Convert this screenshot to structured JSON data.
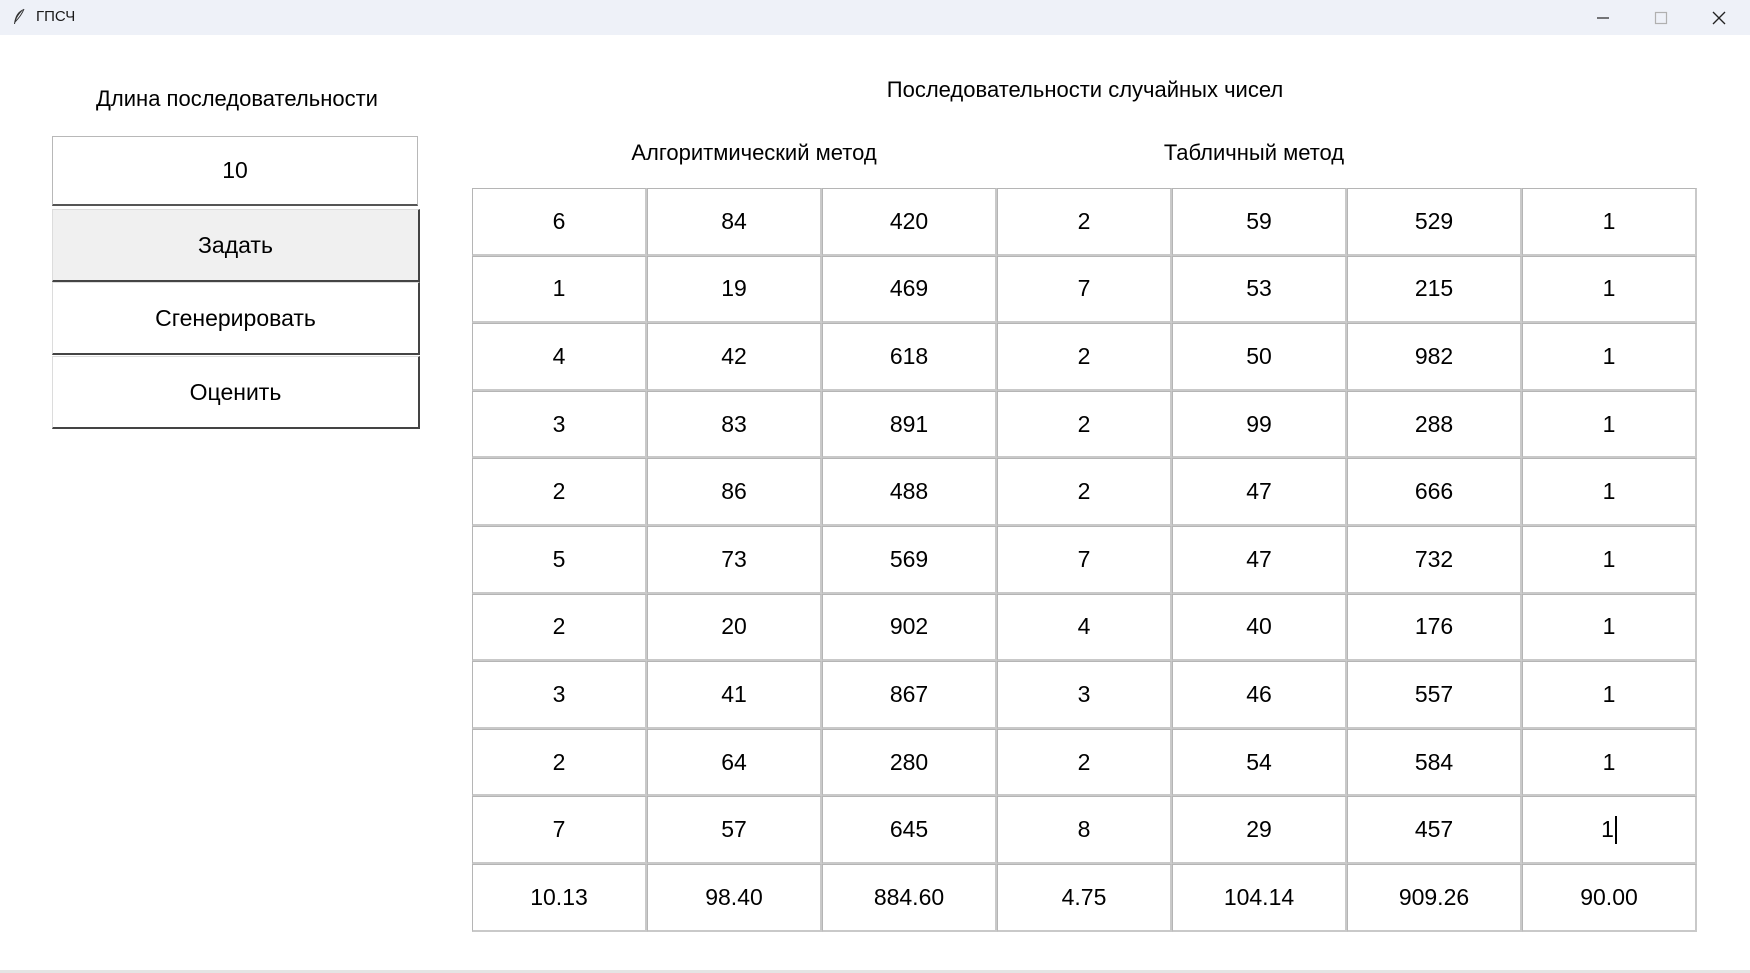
{
  "window": {
    "title": "ГПСЧ"
  },
  "left_panel": {
    "length_label": "Длина последовательности",
    "length_value": "10",
    "buttons": {
      "set": "Задать",
      "generate": "Сгенерировать",
      "evaluate": "Оценить"
    }
  },
  "main": {
    "heading": "Последовательности случайных чисел",
    "algorithmic_label": "Алгоритмический метод",
    "table_label": "Табличный метод",
    "rows": [
      [
        "6",
        "84",
        "420",
        "2",
        "59",
        "529",
        "1"
      ],
      [
        "1",
        "19",
        "469",
        "7",
        "53",
        "215",
        "1"
      ],
      [
        "4",
        "42",
        "618",
        "2",
        "50",
        "982",
        "1"
      ],
      [
        "3",
        "83",
        "891",
        "2",
        "99",
        "288",
        "1"
      ],
      [
        "2",
        "86",
        "488",
        "2",
        "47",
        "666",
        "1"
      ],
      [
        "5",
        "73",
        "569",
        "7",
        "47",
        "732",
        "1"
      ],
      [
        "2",
        "20",
        "902",
        "4",
        "40",
        "176",
        "1"
      ],
      [
        "3",
        "41",
        "867",
        "3",
        "46",
        "557",
        "1"
      ],
      [
        "2",
        "64",
        "280",
        "2",
        "54",
        "584",
        "1"
      ],
      [
        "7",
        "57",
        "645",
        "8",
        "29",
        "457",
        "1"
      ]
    ],
    "summary_row": [
      "10.13",
      "98.40",
      "884.60",
      "4.75",
      "104.14",
      "909.26",
      "90.00"
    ]
  },
  "icons": {
    "app": "feather-icon",
    "minimize": "minimize-icon",
    "maximize": "maximize-icon",
    "close": "close-icon"
  },
  "colors": {
    "titlebar": "#eef1f8",
    "button_active": "#f0f0f0",
    "grid_border": "#b5b5b5"
  }
}
